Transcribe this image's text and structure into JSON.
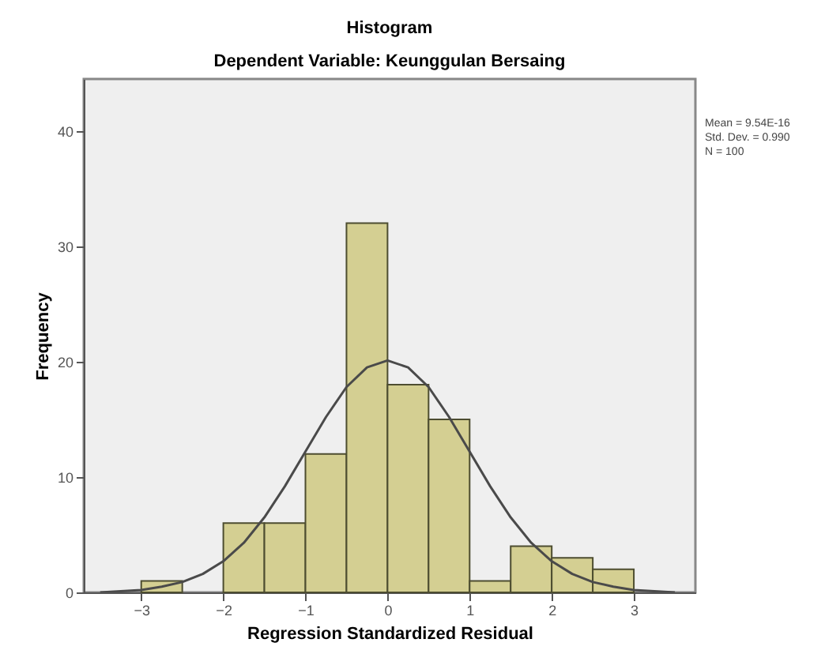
{
  "chart_data": {
    "type": "histogram",
    "title": "Histogram",
    "subtitle": "Dependent Variable: Keunggulan Bersaing",
    "xlabel": "Regression Standardized Residual",
    "ylabel": "Frequency",
    "bins": [
      -3,
      -2.5,
      -2,
      -1.5,
      -1,
      -0.5,
      0,
      0.5,
      1,
      1.5,
      2,
      2.5,
      3
    ],
    "values": [
      1,
      0,
      6,
      6,
      12,
      32,
      18,
      15,
      1,
      4,
      3,
      2
    ],
    "color": "#d4cf92",
    "series": [
      {
        "type": "line",
        "color": "#4a4a4a",
        "x": [
          -3.5,
          -3.25,
          -3,
          -2.75,
          -2.5,
          -2.25,
          -2,
          -1.75,
          -1.5,
          -1.25,
          -1,
          -0.75,
          -0.5,
          -0.25,
          0,
          0.25,
          0.5,
          0.75,
          1,
          1.25,
          1.5,
          1.75,
          2,
          2.25,
          2.5,
          2.75,
          3,
          3.25,
          3.5
        ],
        "values": [
          0.0,
          0.1,
          0.2,
          0.5,
          0.9,
          1.6,
          2.7,
          4.3,
          6.5,
          9.2,
          12.2,
          15.2,
          17.8,
          19.5,
          20.1,
          19.5,
          17.8,
          15.2,
          12.2,
          9.2,
          6.5,
          4.3,
          2.7,
          1.6,
          0.9,
          0.5,
          0.2,
          0.1,
          0.0
        ]
      }
    ],
    "annotations": [
      "Mean = 9.54E-16",
      "Std. Dev. = 0.990",
      "N = 100"
    ],
    "xlim": [
      -3.7,
      3.75
    ],
    "ylim": [
      0,
      44.5
    ],
    "xticks": [
      -3,
      -2,
      -1,
      0,
      1,
      2,
      3
    ],
    "yticks": [
      0,
      10,
      20,
      30,
      40
    ],
    "grid": false
  }
}
